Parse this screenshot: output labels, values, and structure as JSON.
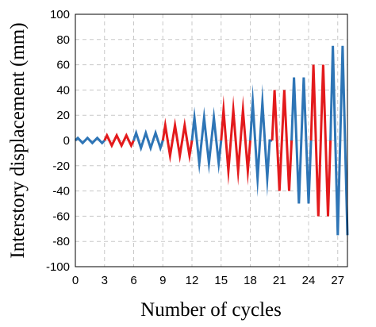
{
  "chart_data": {
    "type": "line",
    "title": "",
    "xlabel": "Number of cycles",
    "ylabel": "Interstory displacement (mm)",
    "xlim": [
      0,
      28
    ],
    "ylim": [
      -100,
      100
    ],
    "x_ticks": [
      "0",
      "3",
      "6",
      "9",
      "12",
      "15",
      "18",
      "21",
      "24",
      "27"
    ],
    "y_ticks": [
      "100",
      "80",
      "60",
      "40",
      "20",
      "0",
      "-20",
      "-40",
      "-60",
      "-80",
      "-100"
    ],
    "grid": true,
    "legend": "none",
    "series": [
      {
        "color": "#2e75b6",
        "x": [
          0,
          0.25,
          0.75,
          1.25,
          1.75,
          2.25,
          2.75,
          3
        ],
        "y": [
          0,
          2,
          -2,
          2,
          -2,
          2,
          -2,
          0
        ]
      },
      {
        "color": "#e31a1c",
        "x": [
          3,
          3.25,
          3.75,
          4.25,
          4.75,
          5.25,
          5.75,
          6
        ],
        "y": [
          0,
          4,
          -4,
          4,
          -4,
          4,
          -4,
          0
        ]
      },
      {
        "color": "#2e75b6",
        "x": [
          6,
          6.25,
          6.75,
          7.25,
          7.75,
          8.25,
          8.75,
          9
        ],
        "y": [
          0,
          6,
          -6,
          6,
          -6,
          6,
          -6,
          0
        ]
      },
      {
        "color": "#e31a1c",
        "x": [
          9,
          9.25,
          9.75,
          10.25,
          10.75,
          11.25,
          11.75,
          12
        ],
        "y": [
          0,
          12,
          -12,
          12,
          -12,
          12,
          -12,
          0
        ]
      },
      {
        "color": "#2e75b6",
        "x": [
          12,
          12.25,
          12.75,
          13.25,
          13.75,
          14.25,
          14.75,
          15
        ],
        "y": [
          0,
          18,
          -18,
          18,
          -18,
          18,
          -18,
          0
        ]
      },
      {
        "color": "#e31a1c",
        "x": [
          15,
          15.25,
          15.75,
          16.25,
          16.75,
          17.25,
          17.75,
          18
        ],
        "y": [
          0,
          24,
          -24,
          24,
          -24,
          24,
          -24,
          0
        ]
      },
      {
        "color": "#2e75b6",
        "x": [
          18,
          18.25,
          18.75,
          19.25,
          19.75,
          20,
          20.25
        ],
        "y": [
          0,
          30,
          -30,
          30,
          -30,
          0,
          0
        ]
      },
      {
        "color": "#e31a1c",
        "x": [
          20.25,
          20.5,
          21,
          21.5,
          22,
          22.25
        ],
        "y": [
          0,
          40,
          -40,
          40,
          -40,
          0
        ]
      },
      {
        "color": "#2e75b6",
        "x": [
          22.25,
          22.5,
          23,
          23.5,
          24,
          24.25
        ],
        "y": [
          0,
          50,
          -50,
          50,
          -50,
          0
        ]
      },
      {
        "color": "#e31a1c",
        "x": [
          24.25,
          24.5,
          25,
          25.5,
          26,
          26.25
        ],
        "y": [
          0,
          60,
          -60,
          60,
          -60,
          0
        ]
      },
      {
        "color": "#2e75b6",
        "x": [
          26.25,
          26.5,
          27,
          27.5,
          28
        ],
        "y": [
          0,
          75,
          -75,
          75,
          -75
        ]
      }
    ]
  }
}
